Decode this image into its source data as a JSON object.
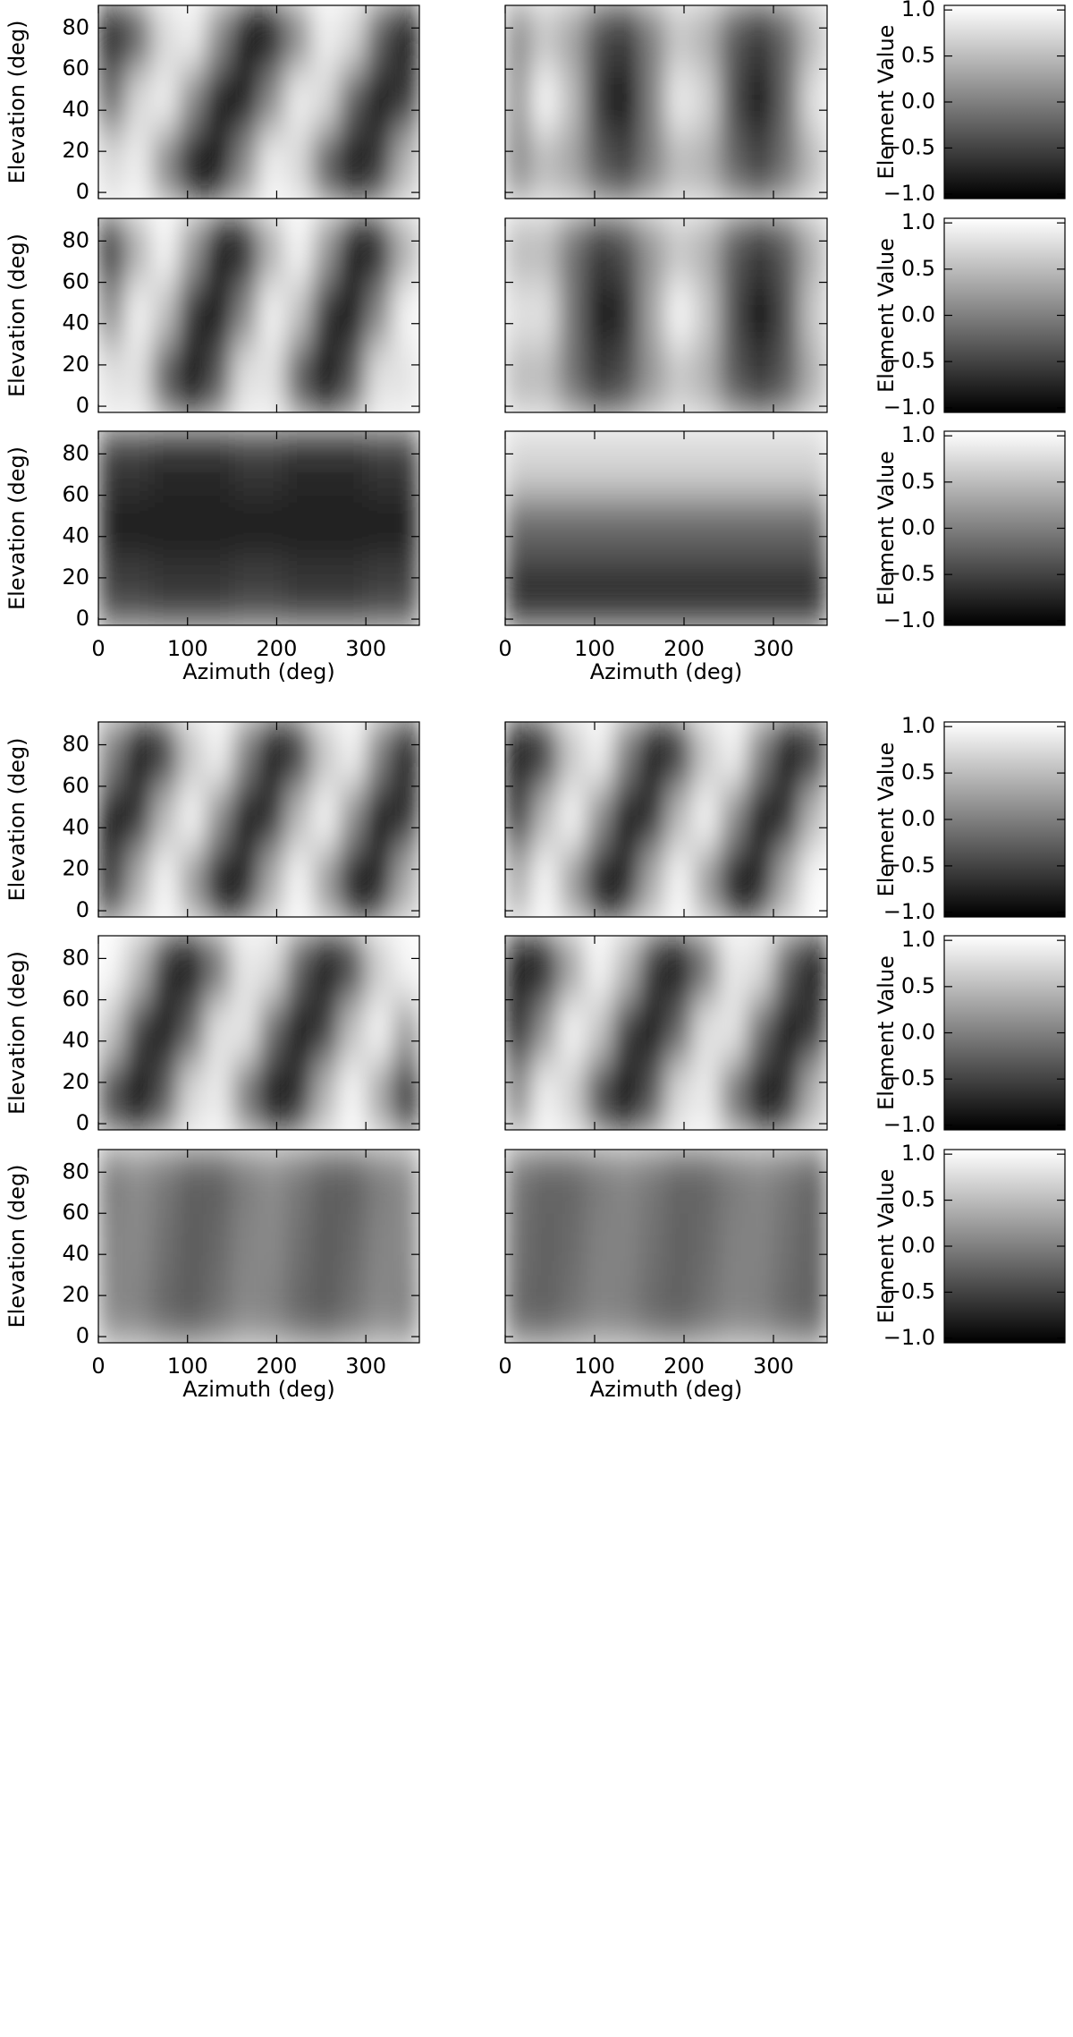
{
  "chart_data": [
    {
      "type": "heatmap",
      "x": [
        15,
        45,
        75,
        105,
        135,
        165,
        195,
        225,
        255,
        285,
        315,
        345
      ],
      "y": [
        15,
        45,
        75
      ],
      "xlim": [
        0,
        360
      ],
      "ylim": [
        -3,
        91
      ],
      "xticks": [
        0,
        100,
        200,
        300
      ],
      "yticks": [
        0,
        20,
        40,
        60,
        80
      ],
      "ylabel": "Elevation (deg)",
      "z": [
        [
          0.74,
          0.93,
          0.09,
          -0.85,
          -0.85,
          0.09,
          0.93,
          0.74,
          -0.28,
          -0.98,
          -0.6,
          0.45
        ],
        [
          -0.28,
          0.74,
          0.93,
          0.09,
          -0.85,
          -0.85,
          0.09,
          0.93,
          0.74,
          -0.28,
          -0.98,
          -0.6
        ],
        [
          -0.98,
          -0.28,
          0.74,
          0.93,
          0.09,
          -0.85,
          -0.85,
          0.09,
          0.93,
          0.74,
          -0.28,
          -0.98
        ]
      ]
    },
    {
      "type": "heatmap",
      "x": [
        15,
        45,
        75,
        105,
        135,
        165,
        195,
        225,
        255,
        285,
        315,
        345
      ],
      "y": [
        15,
        45,
        75
      ],
      "xlim": [
        0,
        360
      ],
      "ylim": [
        -3,
        91
      ],
      "xticks": [
        0,
        100,
        200,
        300
      ],
      "yticks": [
        0,
        20,
        40,
        60,
        80
      ],
      "z": [
        [
          0.1,
          0.5,
          0.3,
          -0.3,
          -0.5,
          0.0,
          0.5,
          0.4,
          -0.2,
          -0.5,
          -0.1,
          0.5
        ],
        [
          0.2,
          1.0,
          0.5,
          -0.6,
          -1.0,
          0.0,
          0.9,
          0.7,
          -0.4,
          -1.0,
          -0.2,
          0.8
        ],
        [
          0.1,
          0.6,
          0.3,
          -0.4,
          -0.6,
          0.0,
          0.6,
          0.4,
          -0.3,
          -0.6,
          -0.2,
          0.5
        ]
      ]
    },
    {
      "type": "colorbar",
      "label": "Element Value",
      "zlim": [
        -1.05,
        1.05
      ],
      "zticks": [
        {
          "value": -1,
          "label": "−1.0"
        },
        {
          "value": -0.5,
          "label": "−0.5"
        },
        {
          "value": 0,
          "label": "0.0"
        },
        {
          "value": 0.5,
          "label": "0.5"
        },
        {
          "value": 1,
          "label": "1.0"
        }
      ]
    },
    {
      "type": "heatmap",
      "x": [
        15,
        45,
        75,
        105,
        135,
        165,
        195,
        225,
        255,
        285,
        315,
        345
      ],
      "y": [
        15,
        45,
        75
      ],
      "xlim": [
        0,
        360
      ],
      "ylim": [
        -3,
        91
      ],
      "xticks": [
        0,
        100,
        200,
        300
      ],
      "yticks": [
        0,
        20,
        40,
        60,
        80
      ],
      "ylabel": "Elevation (deg)",
      "z": [
        [
          0.8,
          0.82,
          -0.29,
          -1.0,
          -0.33,
          0.8,
          0.82,
          -0.29,
          -1.0,
          -0.33,
          0.8,
          0.82
        ],
        [
          0.05,
          0.97,
          0.54,
          -0.63,
          -0.93,
          0.05,
          0.97,
          0.54,
          -0.63,
          -0.93,
          0.05,
          0.97
        ],
        [
          -0.74,
          0.41,
          0.99,
          0.21,
          -0.87,
          -0.74,
          0.41,
          0.99,
          0.21,
          -0.87,
          -0.74,
          0.41
        ]
      ]
    },
    {
      "type": "heatmap",
      "x": [
        15,
        45,
        75,
        105,
        135,
        165,
        195,
        225,
        255,
        285,
        315,
        345
      ],
      "y": [
        15,
        45,
        75
      ],
      "xlim": [
        0,
        360
      ],
      "ylim": [
        -3,
        91
      ],
      "xticks": [
        0,
        100,
        200,
        300
      ],
      "yticks": [
        0,
        20,
        40,
        60,
        80
      ],
      "z": [
        [
          0.5,
          0.5,
          -0.1,
          -0.6,
          -0.4,
          0.2,
          0.6,
          0.4,
          -0.3,
          -0.6,
          -0.3,
          0.4
        ],
        [
          0.8,
          0.8,
          -0.1,
          -0.9,
          -0.7,
          0.3,
          1.0,
          0.6,
          -0.4,
          -1.0,
          -0.4,
          0.6
        ],
        [
          0.5,
          0.5,
          -0.1,
          -0.6,
          -0.4,
          0.2,
          0.6,
          0.4,
          -0.3,
          -0.6,
          -0.3,
          0.4
        ]
      ]
    },
    {
      "type": "colorbar",
      "label": "Element Value",
      "zlim": [
        -1.05,
        1.05
      ],
      "zticks": [
        {
          "value": -1,
          "label": "−1.0"
        },
        {
          "value": -0.5,
          "label": "−0.5"
        },
        {
          "value": 0,
          "label": "0.0"
        },
        {
          "value": 0.5,
          "label": "0.5"
        },
        {
          "value": 1,
          "label": "1.0"
        }
      ]
    },
    {
      "type": "heatmap",
      "x": [
        15,
        45,
        75,
        105,
        135,
        165,
        195,
        225,
        255,
        285,
        315,
        345
      ],
      "y": [
        15,
        45,
        75
      ],
      "xlim": [
        0,
        360
      ],
      "ylim": [
        -3,
        91
      ],
      "xticks": [
        0,
        100,
        200,
        300
      ],
      "yticks": [
        0,
        20,
        40,
        60,
        80
      ],
      "ylabel": "Elevation (deg)",
      "xlabel": "Azimuth (deg)",
      "z": [
        [
          -0.5,
          -0.5,
          -0.6,
          -0.6,
          -0.6,
          -0.5,
          -0.5,
          -0.6,
          -0.6,
          -0.6,
          -0.5,
          -0.5
        ],
        [
          -0.8,
          -0.8,
          -0.8,
          -0.8,
          -0.8,
          -0.8,
          -0.8,
          -0.8,
          -0.8,
          -0.8,
          -0.8,
          -0.8
        ],
        [
          -0.6,
          -0.6,
          -0.7,
          -0.7,
          -0.7,
          -0.6,
          -0.6,
          -0.7,
          -0.7,
          -0.7,
          -0.6,
          -0.6
        ]
      ]
    },
    {
      "type": "heatmap",
      "x": [
        15,
        45,
        75,
        105,
        135,
        165,
        195,
        225,
        255,
        285,
        315,
        345
      ],
      "y": [
        15,
        45,
        75
      ],
      "xlim": [
        0,
        360
      ],
      "ylim": [
        -3,
        91
      ],
      "xticks": [
        0,
        100,
        200,
        300
      ],
      "yticks": [
        0,
        20,
        40,
        60,
        80
      ],
      "xlabel": "Azimuth (deg)",
      "z": [
        [
          -0.7,
          -0.7,
          -0.7,
          -0.7,
          -0.7,
          -0.7,
          -0.7,
          -0.7,
          -0.7,
          -0.7,
          -0.7,
          -0.7
        ],
        [
          -0.2,
          -0.2,
          -0.2,
          -0.2,
          -0.2,
          -0.2,
          -0.2,
          -0.2,
          -0.2,
          -0.2,
          -0.2,
          -0.2
        ],
        [
          0.7,
          0.7,
          0.7,
          0.7,
          0.7,
          0.7,
          0.7,
          0.7,
          0.7,
          0.7,
          0.7,
          0.7
        ]
      ]
    },
    {
      "type": "colorbar",
      "label": "Element Value",
      "zlim": [
        -1.05,
        1.05
      ],
      "zticks": [
        {
          "value": -1,
          "label": "−1.0"
        },
        {
          "value": -0.5,
          "label": "−0.5"
        },
        {
          "value": 0,
          "label": "0.0"
        },
        {
          "value": 0.5,
          "label": "0.5"
        },
        {
          "value": 1,
          "label": "1.0"
        }
      ]
    },
    {
      "type": "heatmap",
      "x": [
        15,
        45,
        75,
        105,
        135,
        165,
        195,
        225,
        255,
        285,
        315,
        345
      ],
      "y": [
        15,
        45,
        75
      ],
      "xlim": [
        0,
        360
      ],
      "ylim": [
        -3,
        91
      ],
      "xticks": [
        0,
        100,
        200,
        300
      ],
      "yticks": [
        0,
        20,
        40,
        60,
        80
      ],
      "ylabel": "Elevation (deg)",
      "z": [
        [
          -0.77,
          0.37,
          1.0,
          0.24,
          -0.85,
          -0.77,
          0.37,
          1.0,
          0.24,
          -0.85,
          -0.77,
          0.37
        ],
        [
          -0.91,
          -0.68,
          0.48,
          0.98,
          0.12,
          -0.91,
          -0.68,
          0.48,
          0.98,
          0.12,
          -0.91,
          -0.68
        ],
        [
          0.0,
          -0.95,
          -0.59,
          0.59,
          0.95,
          0.0,
          -0.95,
          -0.59,
          0.59,
          0.95,
          0.0,
          -0.95
        ]
      ]
    },
    {
      "type": "heatmap",
      "x": [
        15,
        45,
        75,
        105,
        135,
        165,
        195,
        225,
        255,
        285,
        315,
        345
      ],
      "y": [
        15,
        45,
        75
      ],
      "xlim": [
        0,
        360
      ],
      "ylim": [
        -3,
        91
      ],
      "xticks": [
        0,
        100,
        200,
        300
      ],
      "yticks": [
        0,
        20,
        40,
        60,
        80
      ],
      "z": [
        [
          0.37,
          1.0,
          0.24,
          -0.85,
          -0.77,
          0.37,
          1.0,
          0.24,
          -0.85,
          -0.77,
          0.37,
          1.0
        ],
        [
          -0.68,
          0.48,
          0.98,
          0.12,
          -0.91,
          -0.68,
          0.48,
          0.98,
          0.12,
          -0.91,
          -0.68,
          0.48
        ],
        [
          -0.95,
          -0.59,
          0.59,
          0.95,
          0.0,
          -0.95,
          -0.59,
          0.59,
          0.95,
          0.0,
          -0.95,
          -0.59
        ]
      ]
    },
    {
      "type": "colorbar",
      "label": "Element Value",
      "zlim": [
        -1.05,
        1.05
      ],
      "zticks": [
        {
          "value": -1,
          "label": "−1.0"
        },
        {
          "value": -0.5,
          "label": "−0.5"
        },
        {
          "value": 0,
          "label": "0.0"
        },
        {
          "value": 0.5,
          "label": "0.5"
        },
        {
          "value": 1,
          "label": "1.0"
        }
      ]
    },
    {
      "type": "heatmap",
      "x": [
        15,
        45,
        75,
        105,
        135,
        165,
        195,
        225,
        255,
        285,
        315,
        345
      ],
      "y": [
        15,
        45,
        75
      ],
      "xlim": [
        0,
        360
      ],
      "ylim": [
        -3,
        91
      ],
      "xticks": [
        0,
        100,
        200,
        300
      ],
      "yticks": [
        0,
        20,
        40,
        60,
        80
      ],
      "ylabel": "Elevation (deg)",
      "z": [
        [
          -0.44,
          -1.0,
          -0.33,
          0.74,
          0.9,
          -0.05,
          -0.95,
          -0.67,
          0.44,
          1.0,
          0.33,
          -0.74
        ],
        [
          0.57,
          -0.53,
          -0.98,
          -0.22,
          0.82,
          0.85,
          -0.17,
          -0.97,
          -0.57,
          0.53,
          0.98,
          0.22
        ],
        [
          0.99,
          0.48,
          -0.63,
          -0.96,
          -0.1,
          0.87,
          0.78,
          -0.28,
          -0.99,
          -0.48,
          0.63,
          0.96
        ]
      ]
    },
    {
      "type": "heatmap",
      "x": [
        15,
        45,
        75,
        105,
        135,
        165,
        195,
        225,
        255,
        285,
        315,
        345
      ],
      "y": [
        15,
        45,
        75
      ],
      "xlim": [
        0,
        360
      ],
      "ylim": [
        -3,
        91
      ],
      "xticks": [
        0,
        100,
        200,
        300
      ],
      "yticks": [
        0,
        20,
        40,
        60,
        80
      ],
      "z": [
        [
          0.06,
          0.94,
          0.66,
          -0.43,
          -1.0,
          -0.33,
          0.75,
          0.9,
          -0.06,
          -0.94,
          -0.66,
          0.43
        ],
        [
          -0.84,
          0.17,
          0.98,
          0.58,
          -0.54,
          -0.99,
          -0.22,
          0.81,
          0.84,
          -0.17,
          -0.98,
          -0.58
        ],
        [
          -0.88,
          -0.78,
          0.28,
          0.99,
          0.48,
          -0.62,
          -0.96,
          -0.11,
          0.88,
          0.78,
          -0.28,
          -0.99
        ]
      ]
    },
    {
      "type": "colorbar",
      "label": "Element Value",
      "zlim": [
        -1.05,
        1.05
      ],
      "zticks": [
        {
          "value": -1,
          "label": "−1.0"
        },
        {
          "value": -0.5,
          "label": "−0.5"
        },
        {
          "value": 0,
          "label": "0.0"
        },
        {
          "value": 0.5,
          "label": "0.5"
        },
        {
          "value": 1,
          "label": "1.0"
        }
      ]
    },
    {
      "type": "heatmap",
      "x": [
        15,
        45,
        75,
        105,
        135,
        165,
        195,
        225,
        255,
        285,
        315,
        345
      ],
      "y": [
        15,
        45,
        75
      ],
      "xlim": [
        0,
        360
      ],
      "ylim": [
        -3,
        91
      ],
      "xticks": [
        0,
        100,
        200,
        300
      ],
      "yticks": [
        0,
        20,
        40,
        60,
        80
      ],
      "ylabel": "Elevation (deg)",
      "xlabel": "Azimuth (deg)",
      "z": [
        [
          0.08,
          0.03,
          -0.2,
          -0.29,
          -0.12,
          0.08,
          0.03,
          -0.2,
          -0.29,
          -0.12,
          0.08,
          0.03
        ],
        [
          0.04,
          0.08,
          -0.13,
          -0.3,
          -0.19,
          0.04,
          0.08,
          -0.13,
          -0.3,
          -0.19,
          0.04,
          0.08
        ],
        [
          -0.02,
          0.1,
          -0.06,
          -0.27,
          -0.25,
          -0.02,
          0.1,
          -0.06,
          -0.27,
          -0.25,
          -0.02,
          0.1
        ]
      ]
    },
    {
      "type": "heatmap",
      "x": [
        15,
        45,
        75,
        105,
        135,
        165,
        195,
        225,
        255,
        285,
        315,
        345
      ],
      "y": [
        15,
        45,
        75
      ],
      "xlim": [
        0,
        360
      ],
      "ylim": [
        -3,
        91
      ],
      "xticks": [
        0,
        100,
        200,
        300
      ],
      "yticks": [
        0,
        20,
        40,
        60,
        80
      ],
      "xlabel": "Azimuth (deg)",
      "z": [
        [
          -0.18,
          -0.25,
          -0.11,
          0.04,
          0.0,
          -0.18,
          -0.25,
          -0.11,
          0.04,
          0.0,
          -0.18,
          -0.25
        ],
        [
          -0.12,
          -0.25,
          -0.17,
          0.01,
          0.03,
          -0.12,
          -0.25,
          -0.17,
          0.01,
          0.03,
          -0.12,
          -0.25
        ],
        [
          -0.07,
          -0.23,
          -0.21,
          -0.04,
          0.05,
          -0.07,
          -0.23,
          -0.21,
          -0.04,
          0.05,
          -0.07,
          -0.23
        ]
      ]
    },
    {
      "type": "colorbar",
      "label": "Element Value",
      "zlim": [
        -1.05,
        1.05
      ],
      "zticks": [
        {
          "value": -1,
          "label": "−1.0"
        },
        {
          "value": -0.5,
          "label": "−0.5"
        },
        {
          "value": 0,
          "label": "0.0"
        },
        {
          "value": 0.5,
          "label": "0.5"
        },
        {
          "value": 1,
          "label": "1.0"
        }
      ]
    }
  ]
}
